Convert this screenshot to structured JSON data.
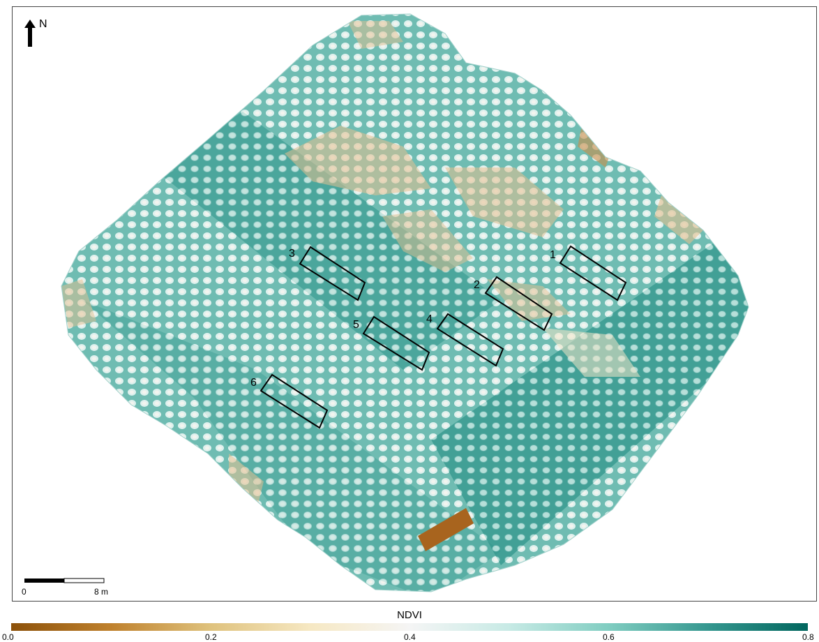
{
  "north_label": "N",
  "scale_bar": {
    "start_label": "0",
    "end_label": "8 m"
  },
  "plots": [
    {
      "label": "1"
    },
    {
      "label": "2"
    },
    {
      "label": "3"
    },
    {
      "label": "4"
    },
    {
      "label": "5"
    },
    {
      "label": "6"
    }
  ],
  "legend": {
    "title": "NDVI",
    "ticks": [
      "0.0",
      "0.2",
      "0.4",
      "0.6",
      "0.8"
    ],
    "colors": [
      "#8c510a",
      "#bf812d",
      "#dfc27d",
      "#f6e8c3",
      "#f5f5f5",
      "#c7eae5",
      "#80cdc1",
      "#35978f",
      "#01665e"
    ]
  },
  "colors": {
    "map_base": "#7fc6bd",
    "dark_teal": "#1a8f86",
    "tan": "#e3c08f",
    "reference_strip": "#a8641e"
  }
}
